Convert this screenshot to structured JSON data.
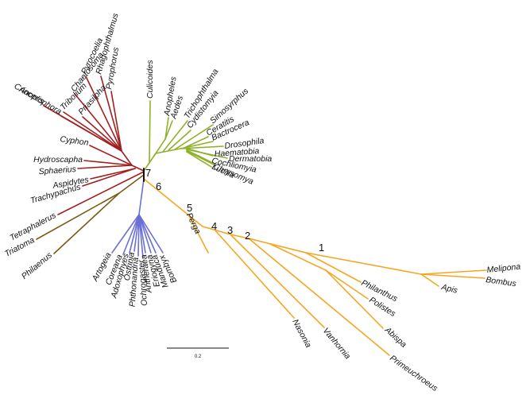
{
  "diagram": {
    "type": "unrooted-phylogenetic-tree",
    "scale_bar_label": "0.2",
    "node_labels": [
      "1",
      "2",
      "3",
      "4",
      "5",
      "6",
      "7"
    ],
    "clade_colors": {
      "coleoptera": "#a31f1f",
      "diptera": "#8fb02b",
      "hemiptera": "#7a5c14",
      "lepidoptera": "#6b6fd6",
      "hymenoptera": "#f5a623",
      "center": "#111111"
    },
    "clades": {
      "coleoptera": [
        "Rhagophthalmus",
        "Pyrophorus",
        "Pyrocoelia",
        "Chaetosoma",
        "Tribolium",
        "Priasilpha",
        "Anoplophora",
        "Crioceris",
        "Cyphon",
        "Hydroscapha",
        "Sphaerius",
        "Aspidytes",
        "Trachypachus",
        "Tetraphalerus"
      ],
      "diptera": [
        "Culicoides",
        "Anopheles",
        "Aedes",
        "Trichophthalma",
        "Cydistomyia",
        "Simosyrphus",
        "Ceratitis",
        "Bactrocera",
        "Drosophila",
        "Haematobia",
        "Dermatobia",
        "Cochliomyia",
        "Chrysomya",
        "Lucilia"
      ],
      "hemiptera": [
        "Triatoma",
        "Philaenus"
      ],
      "lepidoptera": [
        "Artogeia",
        "Coreana",
        "Adoxophyes",
        "Ostrinia",
        "Phthonandria",
        "Ochrogaster",
        "Antheraea",
        "Eriogyna",
        "Manduca",
        "Bombyx"
      ],
      "hymenoptera": [
        "Perga",
        "Nasonia",
        "Vanhornia",
        "Primeuchroeus",
        "Abispa",
        "Polistes",
        "Philanthus",
        "Apis",
        "Bombus",
        "Melipona"
      ]
    }
  }
}
